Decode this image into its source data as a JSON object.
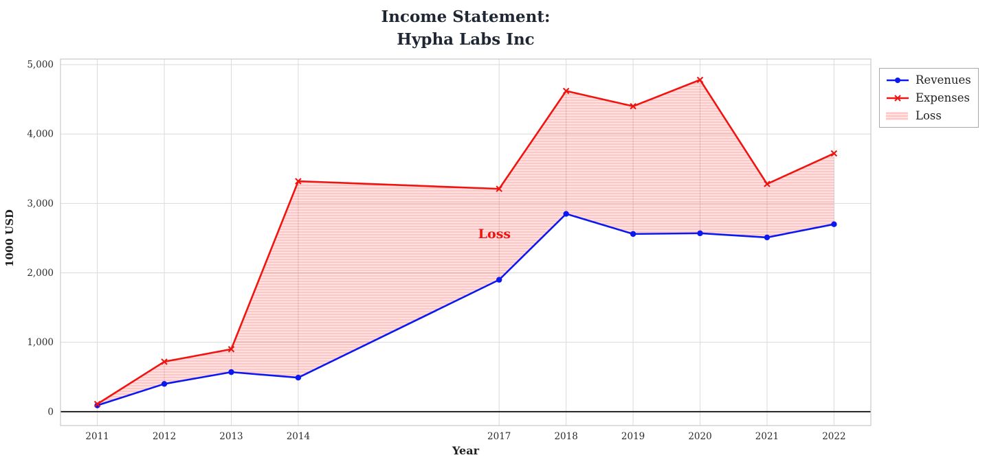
{
  "title": {
    "line1": "Income Statement:",
    "line2": "Hypha Labs Inc"
  },
  "chart_data": {
    "type": "line",
    "title": "Income Statement:\nHypha Labs Inc",
    "xlabel": "Year",
    "ylabel": "1000 USD",
    "x": [
      2011,
      2012,
      2013,
      2014,
      2017,
      2018,
      2019,
      2020,
      2021,
      2022
    ],
    "series": [
      {
        "name": "Revenues",
        "color": "#0b18ef",
        "marker": "circle",
        "values": [
          90,
          400,
          570,
          490,
          1900,
          2850,
          2560,
          2570,
          2510,
          2700
        ]
      },
      {
        "name": "Expenses",
        "color": "#ef1410",
        "marker": "x",
        "values": [
          110,
          720,
          900,
          3320,
          3210,
          4620,
          4400,
          4780,
          3280,
          3720
        ]
      }
    ],
    "fill_between": {
      "label": "Loss",
      "upper": "Expenses",
      "lower": "Revenues",
      "fill_color": "rgba(255,0,0,0.11)",
      "hatch_color": "rgba(255,0,0,0.26)"
    },
    "annotations": [
      {
        "text": "Loss",
        "x": 2016.93,
        "y": 2560,
        "color": "#ef1410"
      }
    ],
    "xticks": {
      "values": [
        2011,
        2012,
        2013,
        2014,
        2017,
        2018,
        2019,
        2020,
        2021,
        2022
      ],
      "labels": [
        "2011",
        "2012",
        "2013",
        "2014",
        "2017",
        "2018",
        "2019",
        "2020",
        "2021",
        "2022"
      ]
    },
    "yticks": {
      "values": [
        0,
        1000,
        2000,
        3000,
        4000,
        5000
      ],
      "labels": [
        "0",
        "1,000",
        "2,000",
        "3,000",
        "4,000",
        "5,000"
      ]
    },
    "xlim": [
      2010.45,
      2022.55
    ],
    "ylim": [
      -200,
      5080
    ],
    "zero_line": true,
    "grid": true,
    "legend": {
      "position": "outside-top-right",
      "entries": [
        {
          "label": "Revenues",
          "type": "line-circle",
          "color": "#0b18ef"
        },
        {
          "label": "Expenses",
          "type": "line-x",
          "color": "#ef1410"
        },
        {
          "label": "Loss",
          "type": "patch",
          "color": "rgba(255,0,0,0.11)"
        }
      ]
    }
  }
}
